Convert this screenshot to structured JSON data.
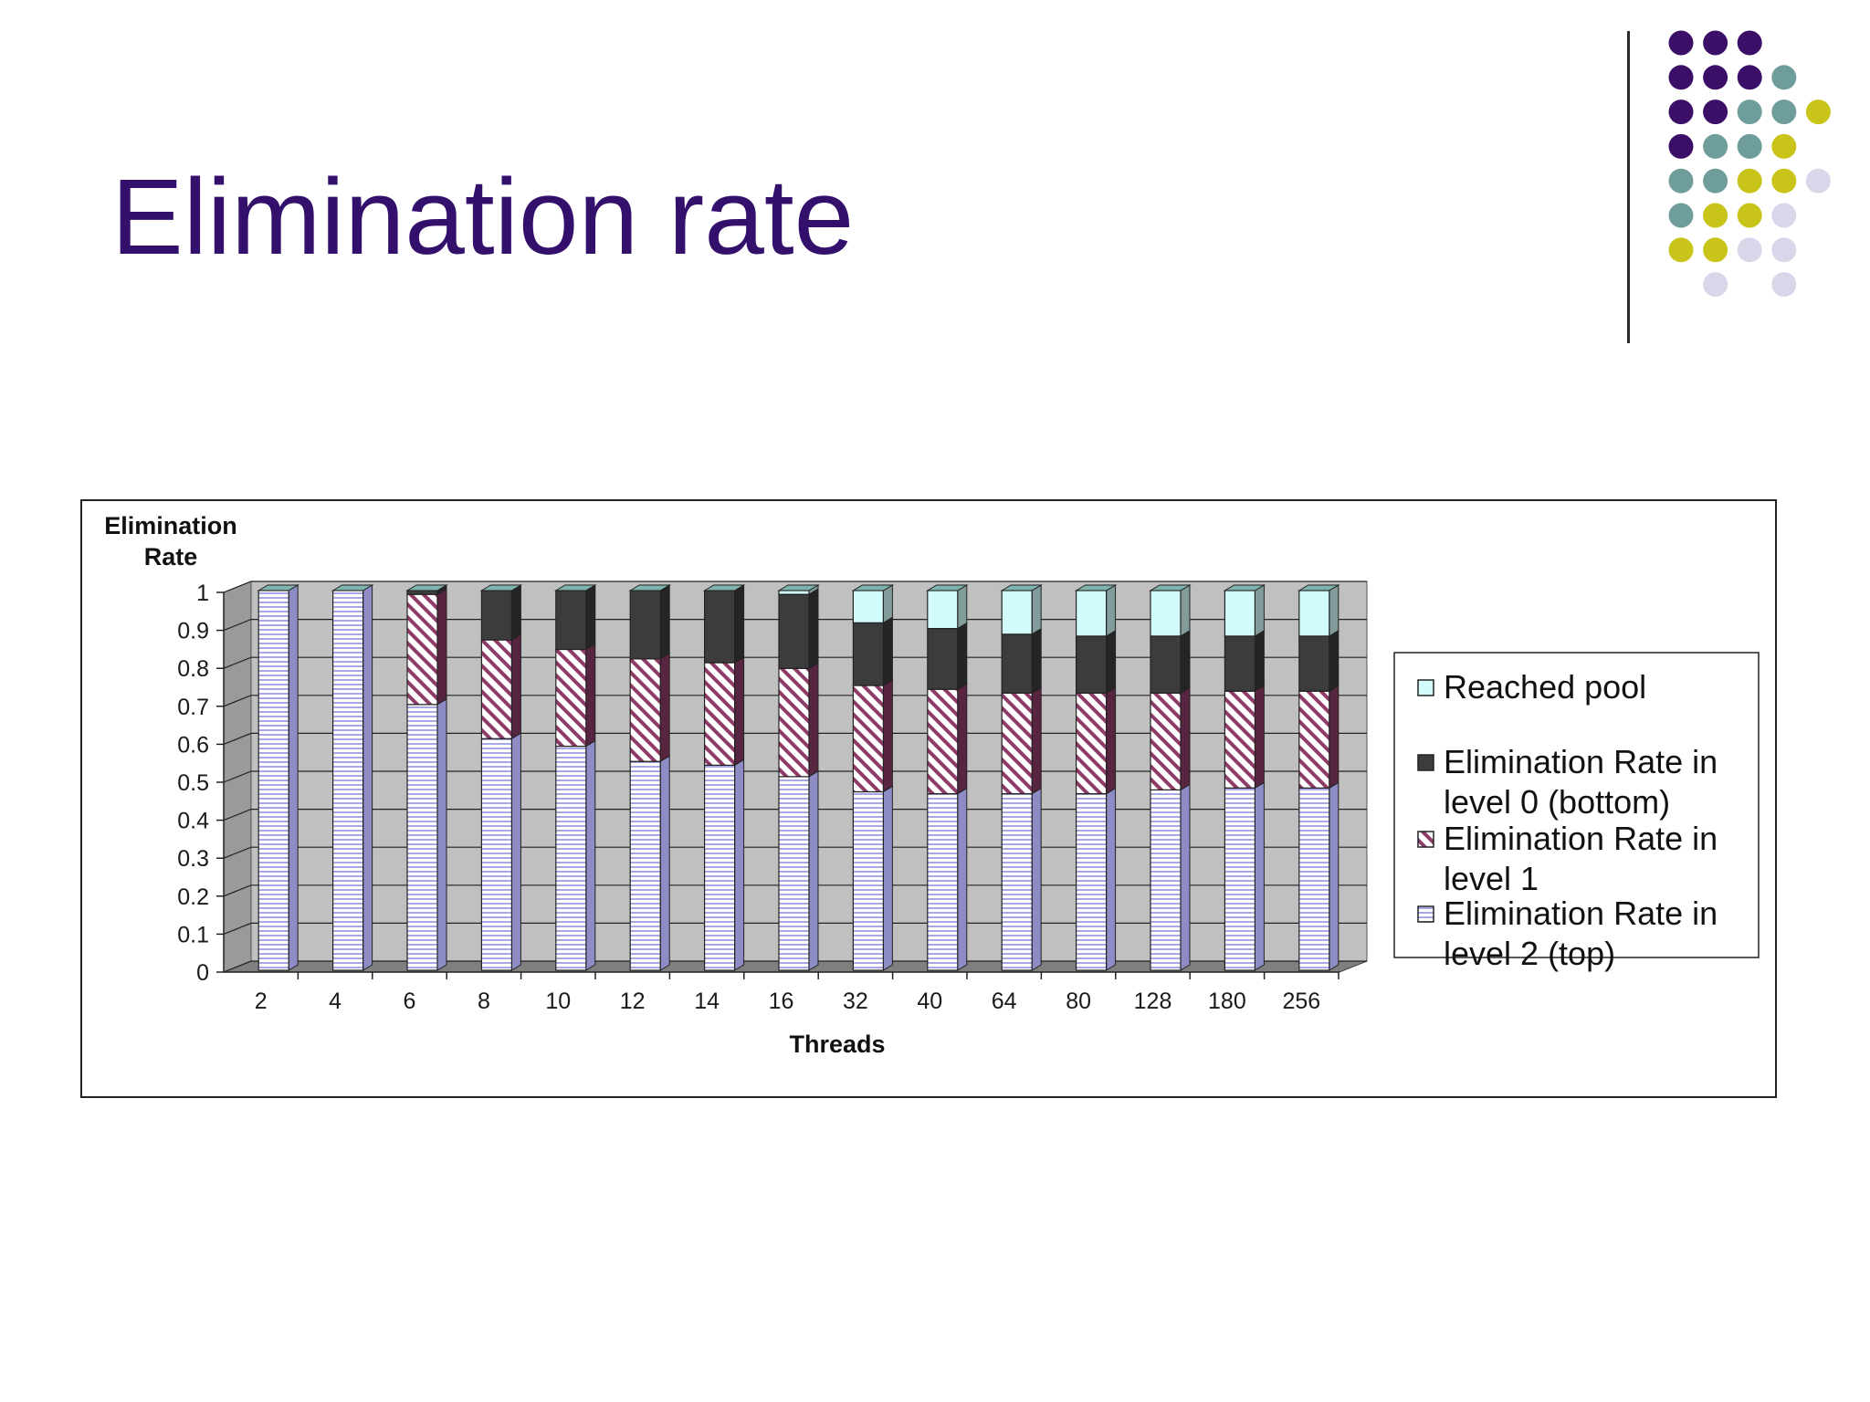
{
  "slide": {
    "title": "Elimination rate"
  },
  "decoration": {
    "dot_colors": {
      "purple": "#3b0f68",
      "teal": "#6f9d9b",
      "olive": "#c8c419",
      "lavender": "#d9d6ea"
    },
    "dot_grid": [
      [
        "purple",
        "purple",
        "purple",
        "",
        ""
      ],
      [
        "purple",
        "purple",
        "purple",
        "teal",
        ""
      ],
      [
        "purple",
        "purple",
        "teal",
        "teal",
        "olive"
      ],
      [
        "purple",
        "teal",
        "teal",
        "olive",
        ""
      ],
      [
        "teal",
        "teal",
        "olive",
        "olive",
        "lavender"
      ],
      [
        "teal",
        "olive",
        "olive",
        "lavender",
        ""
      ],
      [
        "olive",
        "olive",
        "lavender",
        "lavender",
        ""
      ],
      [
        "",
        "lavender",
        "",
        "lavender",
        ""
      ]
    ]
  },
  "chart_data": {
    "type": "bar",
    "stacked": true,
    "three_d": true,
    "categories": [
      "2",
      "4",
      "6",
      "8",
      "10",
      "12",
      "14",
      "16",
      "32",
      "40",
      "64",
      "80",
      "128",
      "180",
      "256"
    ],
    "series": [
      {
        "name": "Elimination Rate in level 2 (top)",
        "color": "#dcdcf5",
        "pattern": "horizontal-lines",
        "values": [
          1.0,
          1.0,
          0.7,
          0.61,
          0.59,
          0.55,
          0.54,
          0.51,
          0.47,
          0.465,
          0.465,
          0.465,
          0.475,
          0.48,
          0.48
        ]
      },
      {
        "name": "Elimination Rate in level 1",
        "color": "#8e3b68",
        "pattern": "diagonal-stripes",
        "values": [
          0,
          0,
          0.29,
          0.26,
          0.255,
          0.27,
          0.27,
          0.285,
          0.28,
          0.275,
          0.265,
          0.265,
          0.255,
          0.255,
          0.255
        ]
      },
      {
        "name": "Elimination Rate in level 0 (bottom)",
        "color": "#3c3c3c",
        "pattern": "solid",
        "values": [
          0,
          0,
          0.01,
          0.13,
          0.155,
          0.18,
          0.19,
          0.195,
          0.165,
          0.16,
          0.155,
          0.15,
          0.15,
          0.145,
          0.145
        ]
      },
      {
        "name": "Reached pool",
        "color": "#d2fbfb",
        "pattern": "solid",
        "values": [
          0,
          0,
          0,
          0,
          0,
          0,
          0,
          0.01,
          0.085,
          0.1,
          0.115,
          0.12,
          0.12,
          0.12,
          0.12
        ]
      }
    ],
    "ylabel": "Elimination\nRate",
    "ylabel_lines": [
      "Elimination",
      "Rate"
    ],
    "xlabel": "Threads",
    "ylim": [
      0,
      1
    ],
    "yticks": [
      "0",
      "0.1",
      "0.2",
      "0.3",
      "0.4",
      "0.5",
      "0.6",
      "0.7",
      "0.8",
      "0.9",
      "1"
    ],
    "grid": true,
    "legend_position": "right",
    "legend": [
      {
        "lines": [
          "Reached pool"
        ],
        "series_index": 3
      },
      {
        "lines": [
          "Elimination Rate in",
          "level 0 (bottom)"
        ],
        "series_index": 2
      },
      {
        "lines": [
          "Elimination Rate in",
          "level 1"
        ],
        "series_index": 1
      },
      {
        "lines": [
          "Elimination Rate in",
          "level 2 (top)"
        ],
        "series_index": 0
      }
    ]
  }
}
